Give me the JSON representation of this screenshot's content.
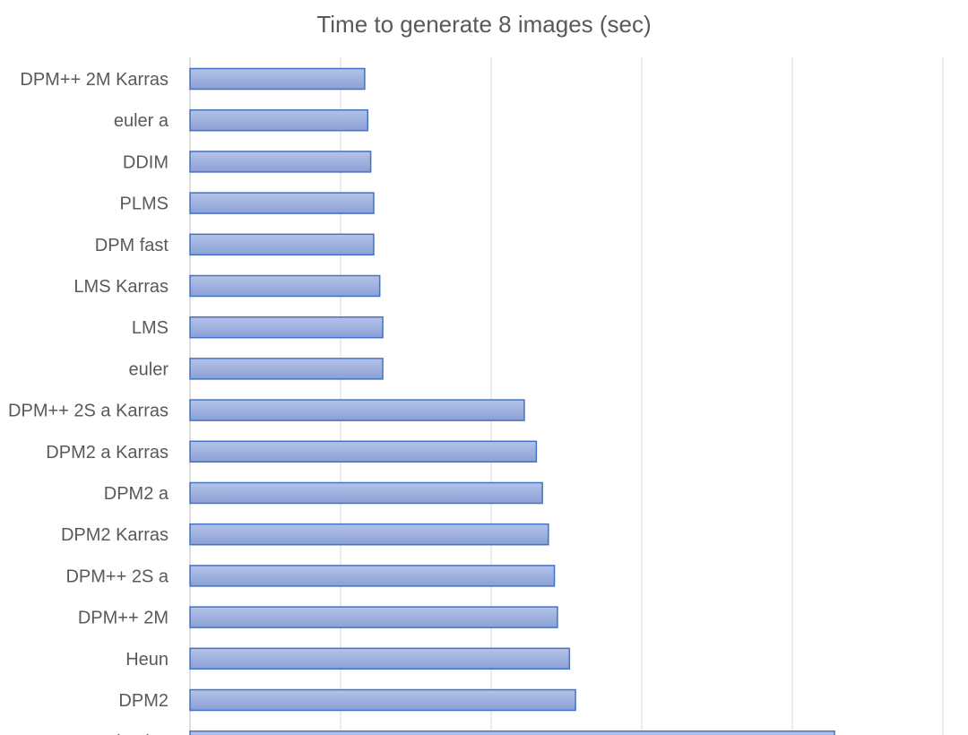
{
  "chart_data": {
    "type": "bar",
    "orientation": "horizontal",
    "title": "Time to generate 8 images (sec)",
    "categories": [
      "DPM++ 2M Karras",
      "euler a",
      "DDIM",
      "PLMS",
      "DPM fast",
      "LMS Karras",
      "LMS",
      "euler",
      "DPM++ 2S a Karras",
      "DPM2 a Karras",
      "DPM2 a",
      "DPM2 Karras",
      "DPM++ 2S a",
      "DPM++ 2M",
      "Heun",
      "DPM2",
      "DPM adaptive"
    ],
    "values": [
      11.6,
      11.8,
      12.0,
      12.2,
      12.2,
      12.6,
      12.8,
      12.8,
      22.2,
      23.0,
      23.4,
      23.8,
      24.2,
      24.4,
      25.2,
      25.6,
      42.8
    ],
    "xlim": [
      0,
      50
    ],
    "grid": true,
    "colors": {
      "bar_fill_top": "#b4c3e8",
      "bar_fill_bottom": "#8aa0d6",
      "bar_stroke": "#4472c4",
      "grid": "#d9d9d9",
      "text": "#595959"
    }
  }
}
